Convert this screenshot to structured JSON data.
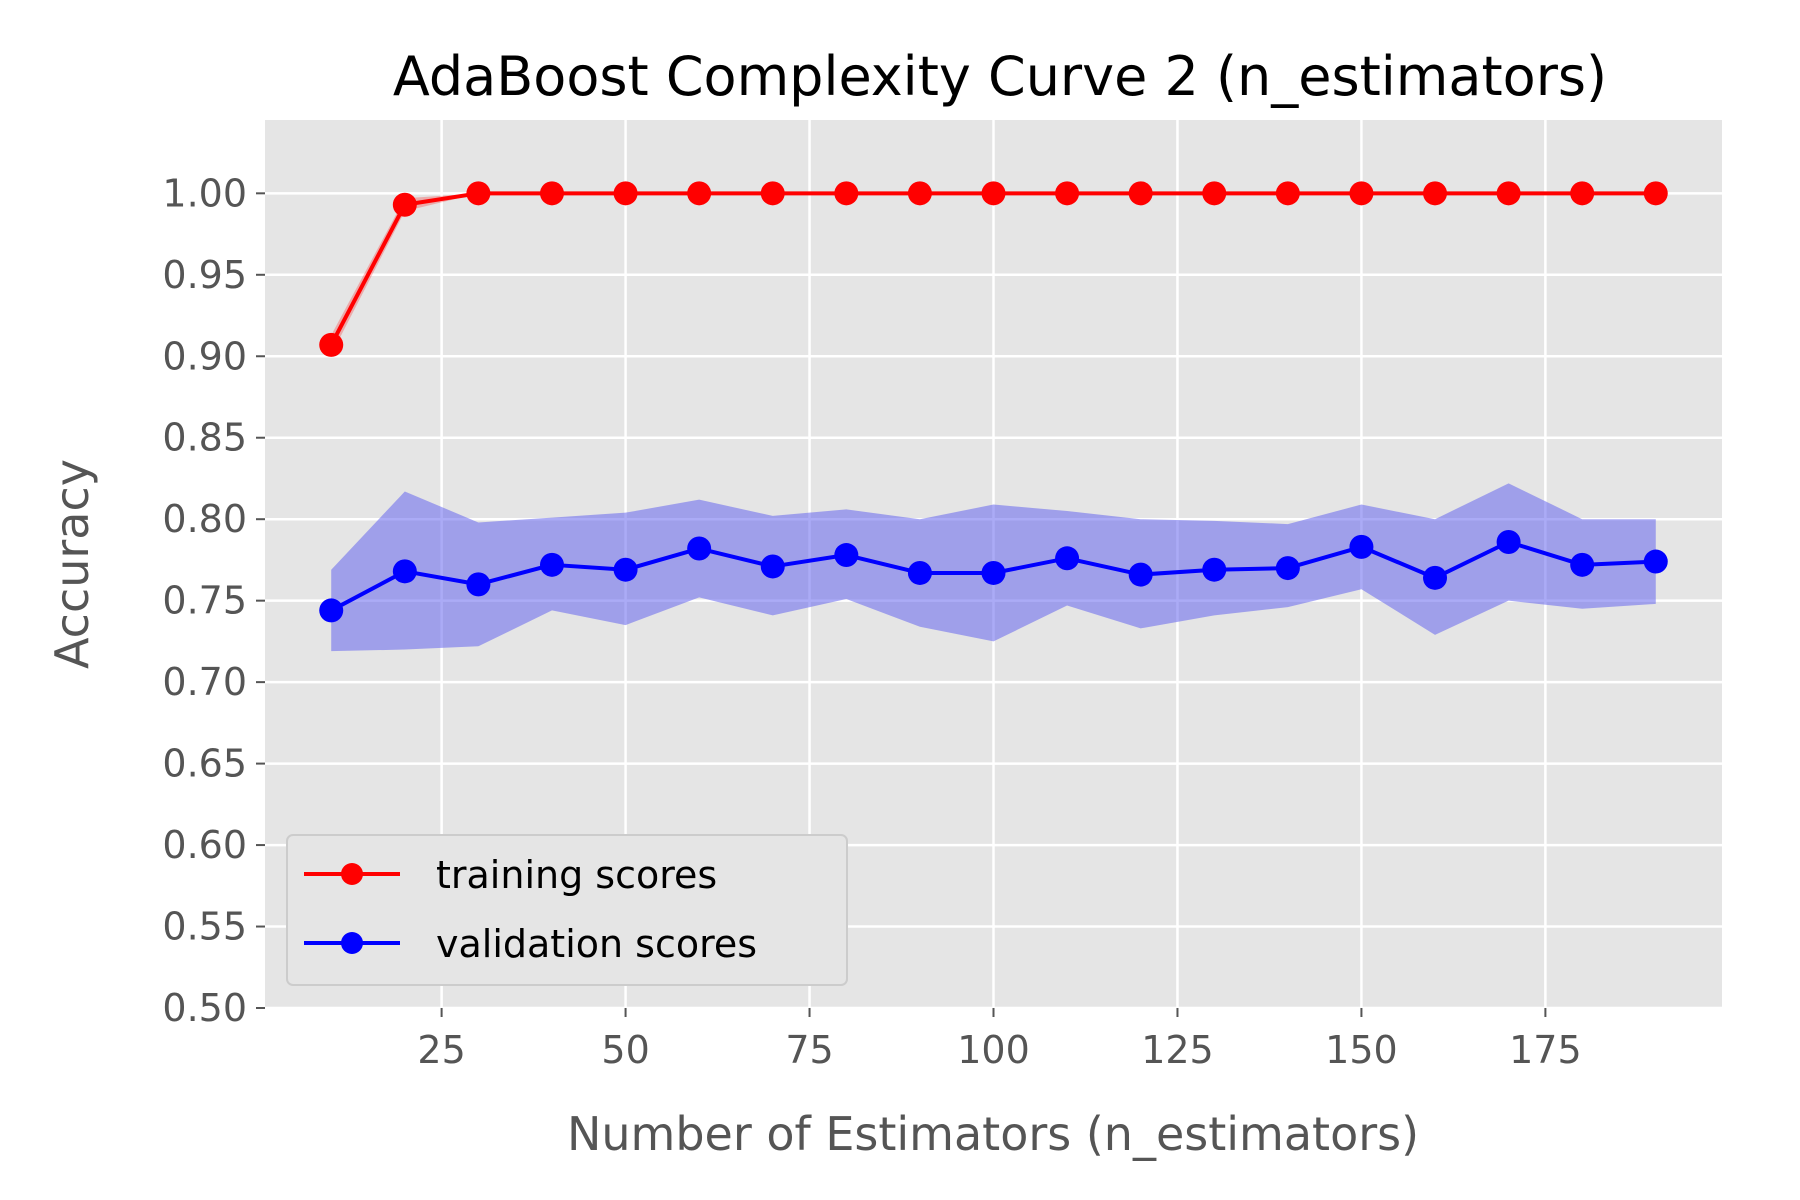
{
  "chart_data": {
    "type": "line",
    "title": "AdaBoost Complexity Curve 2 (n_estimators)",
    "xlabel": "Number of Estimators (n_estimators)",
    "ylabel": "Accuracy",
    "xlim": [
      1,
      199
    ],
    "ylim": [
      0.5,
      1.045
    ],
    "xticks": [
      25,
      50,
      75,
      100,
      125,
      150,
      175
    ],
    "yticks": [
      0.5,
      0.55,
      0.6,
      0.65,
      0.7,
      0.75,
      0.8,
      0.85,
      0.9,
      0.95,
      1.0
    ],
    "ytick_labels": [
      "0.50",
      "0.55",
      "0.60",
      "0.65",
      "0.70",
      "0.75",
      "0.80",
      "0.85",
      "0.90",
      "0.95",
      "1.00"
    ],
    "grid": true,
    "legend_position": "lower-left",
    "x": [
      10,
      20,
      30,
      40,
      50,
      60,
      70,
      80,
      90,
      100,
      110,
      120,
      130,
      140,
      150,
      160,
      170,
      180,
      190
    ],
    "series": [
      {
        "name": "training scores",
        "color": "#ff0000",
        "band_color": "#ff0000",
        "values": [
          0.907,
          0.993,
          1.0,
          1.0,
          1.0,
          1.0,
          1.0,
          1.0,
          1.0,
          1.0,
          1.0,
          1.0,
          1.0,
          1.0,
          1.0,
          1.0,
          1.0,
          1.0,
          1.0
        ],
        "band_lower": [
          0.901,
          0.989,
          1.0,
          1.0,
          1.0,
          1.0,
          1.0,
          1.0,
          1.0,
          1.0,
          1.0,
          1.0,
          1.0,
          1.0,
          1.0,
          1.0,
          1.0,
          1.0,
          1.0
        ],
        "band_upper": [
          0.913,
          0.997,
          1.0,
          1.0,
          1.0,
          1.0,
          1.0,
          1.0,
          1.0,
          1.0,
          1.0,
          1.0,
          1.0,
          1.0,
          1.0,
          1.0,
          1.0,
          1.0,
          1.0
        ]
      },
      {
        "name": "validation scores",
        "color": "#0000ff",
        "band_color": "#6666ee",
        "values": [
          0.744,
          0.768,
          0.76,
          0.772,
          0.769,
          0.782,
          0.771,
          0.778,
          0.767,
          0.767,
          0.776,
          0.766,
          0.769,
          0.77,
          0.783,
          0.764,
          0.786,
          0.772,
          0.774
        ],
        "band_lower": [
          0.719,
          0.72,
          0.722,
          0.744,
          0.735,
          0.752,
          0.741,
          0.751,
          0.734,
          0.725,
          0.747,
          0.733,
          0.741,
          0.746,
          0.757,
          0.729,
          0.75,
          0.745,
          0.748
        ],
        "band_upper": [
          0.769,
          0.817,
          0.798,
          0.801,
          0.804,
          0.812,
          0.802,
          0.806,
          0.8,
          0.809,
          0.805,
          0.8,
          0.799,
          0.797,
          0.809,
          0.8,
          0.822,
          0.8,
          0.8
        ]
      }
    ]
  }
}
